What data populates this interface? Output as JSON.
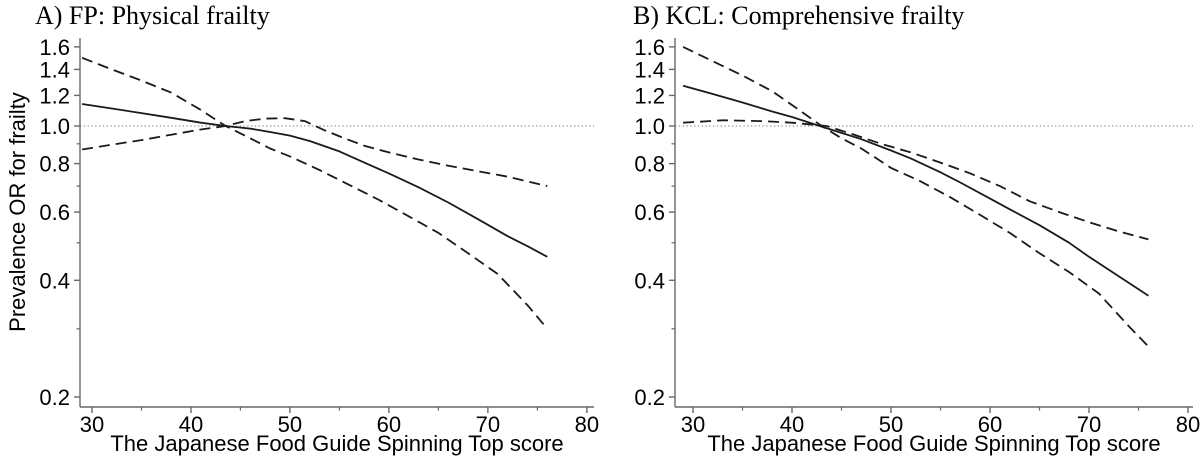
{
  "figure": {
    "colors": {
      "background": "#ffffff",
      "line": "#1a1a1a",
      "axis": "#686868",
      "ref_line": "#808080",
      "text": "#000000"
    }
  },
  "chart_data": [
    {
      "id": "A",
      "type": "line",
      "title": "A) FP: Physical frailty",
      "xlabel": "The Japanese Food Guide Spinning Top score",
      "ylabel": "Prevalence OR for frailty",
      "y_scale": "log",
      "xlim": [
        28.79,
        80.72
      ],
      "ylim": [
        0.1885,
        1.687
      ],
      "reference_line": 1.0,
      "grid": false,
      "legend": "none",
      "x_ticks": [
        30,
        40,
        50,
        60,
        70,
        80
      ],
      "x_tick_labels": [
        "30",
        "40",
        "50",
        "60",
        "70",
        "80"
      ],
      "x_minor_ticks": [
        35,
        45,
        55,
        65,
        75
      ],
      "y_ticks": [
        1.6,
        1.4,
        1.2,
        1.0,
        0.8,
        0.6,
        0.4,
        0.2
      ],
      "y_tick_labels": [
        "1.6",
        "1.4",
        "1.2",
        "1.0",
        "0.8",
        "0.6",
        "0.4",
        "0.2"
      ],
      "y_minor_ticks": [
        0.9,
        0.7,
        0.5,
        0.3
      ],
      "series": [
        {
          "name": "or-estimate-line",
          "label": "Prevalence OR (point estimate)",
          "style": "solid",
          "x": [
            29,
            32,
            35,
            38,
            41,
            43.5,
            46,
            48,
            50,
            52,
            55,
            58,
            60,
            63,
            66,
            69,
            72,
            74,
            76
          ],
          "y": [
            1.14,
            1.11,
            1.08,
            1.05,
            1.02,
            1.0,
            0.985,
            0.965,
            0.945,
            0.915,
            0.86,
            0.795,
            0.755,
            0.695,
            0.635,
            0.575,
            0.52,
            0.49,
            0.46
          ]
        },
        {
          "name": "ci-bound-steep-line",
          "label": "95% CI bound (upper at left, lower at right)",
          "style": "dashed",
          "x": [
            29,
            32,
            35,
            38,
            41,
            43.5,
            46,
            48,
            50,
            53,
            56,
            59,
            62,
            65,
            68,
            71,
            74,
            76
          ],
          "y": [
            1.5,
            1.4,
            1.31,
            1.22,
            1.1,
            1.0,
            0.93,
            0.875,
            0.835,
            0.77,
            0.705,
            0.645,
            0.585,
            0.53,
            0.47,
            0.415,
            0.345,
            0.3
          ]
        },
        {
          "name": "ci-bound-flat-line",
          "label": "95% CI bound (lower at left, upper at right)",
          "style": "dashed",
          "x": [
            29,
            32,
            35,
            38,
            41,
            43.5,
            45.5,
            47.5,
            49.5,
            51.5,
            53.5,
            55.5,
            57.5,
            60,
            63,
            66,
            69,
            72,
            74,
            76
          ],
          "y": [
            0.87,
            0.895,
            0.92,
            0.95,
            0.98,
            1.0,
            1.03,
            1.045,
            1.048,
            1.03,
            0.975,
            0.93,
            0.89,
            0.855,
            0.82,
            0.79,
            0.765,
            0.74,
            0.72,
            0.7
          ]
        }
      ]
    },
    {
      "id": "B",
      "type": "line",
      "title": "B) KCL: Comprehensive frailty",
      "xlabel": "The Japanese Food Guide Spinning Top score",
      "ylabel": "",
      "y_scale": "log",
      "xlim": [
        28.18,
        80.5
      ],
      "ylim": [
        0.1885,
        1.687
      ],
      "reference_line": 1.0,
      "grid": false,
      "legend": "none",
      "x_ticks": [
        30,
        40,
        50,
        60,
        70,
        80
      ],
      "x_tick_labels": [
        "30",
        "40",
        "50",
        "60",
        "70",
        "80"
      ],
      "x_minor_ticks": [
        35,
        45,
        55,
        65,
        75
      ],
      "y_ticks": [
        1.6,
        1.4,
        1.2,
        1.0,
        0.8,
        0.6,
        0.4,
        0.2
      ],
      "y_tick_labels": [
        "1.6",
        "1.4",
        "1.2",
        "1.0",
        "0.8",
        "0.6",
        "0.4",
        "0.2"
      ],
      "y_minor_ticks": [
        0.9,
        0.7,
        0.5,
        0.3
      ],
      "series": [
        {
          "name": "or-estimate-line",
          "label": "Prevalence OR (point estimate)",
          "style": "solid",
          "x": [
            29,
            32,
            35,
            38,
            40,
            42.8,
            45,
            47,
            50,
            52,
            55,
            57,
            60,
            62,
            65,
            68,
            70,
            73,
            76
          ],
          "y": [
            1.27,
            1.21,
            1.15,
            1.09,
            1.055,
            1.0,
            0.96,
            0.925,
            0.865,
            0.825,
            0.76,
            0.715,
            0.65,
            0.61,
            0.555,
            0.5,
            0.46,
            0.41,
            0.365
          ]
        },
        {
          "name": "ci-bound-steep-line",
          "label": "95% CI bound (upper at left, lower at right)",
          "style": "dashed",
          "x": [
            29,
            32,
            35,
            38,
            40.5,
            43,
            45,
            47,
            50,
            53,
            56,
            59,
            62,
            65,
            68,
            71,
            74,
            76
          ],
          "y": [
            1.6,
            1.47,
            1.35,
            1.23,
            1.11,
            1.0,
            0.93,
            0.875,
            0.78,
            0.72,
            0.655,
            0.59,
            0.53,
            0.47,
            0.42,
            0.37,
            0.305,
            0.27
          ]
        },
        {
          "name": "ci-bound-flat-line",
          "label": "95% CI bound (lower at left, upper at right)",
          "style": "dashed",
          "x": [
            29,
            33,
            37,
            40,
            43.5,
            46,
            49,
            52,
            55,
            58,
            61,
            64,
            67,
            70,
            73,
            76
          ],
          "y": [
            1.02,
            1.035,
            1.03,
            1.02,
            1.0,
            0.955,
            0.9,
            0.855,
            0.805,
            0.755,
            0.7,
            0.64,
            0.6,
            0.565,
            0.535,
            0.51
          ]
        }
      ]
    }
  ]
}
